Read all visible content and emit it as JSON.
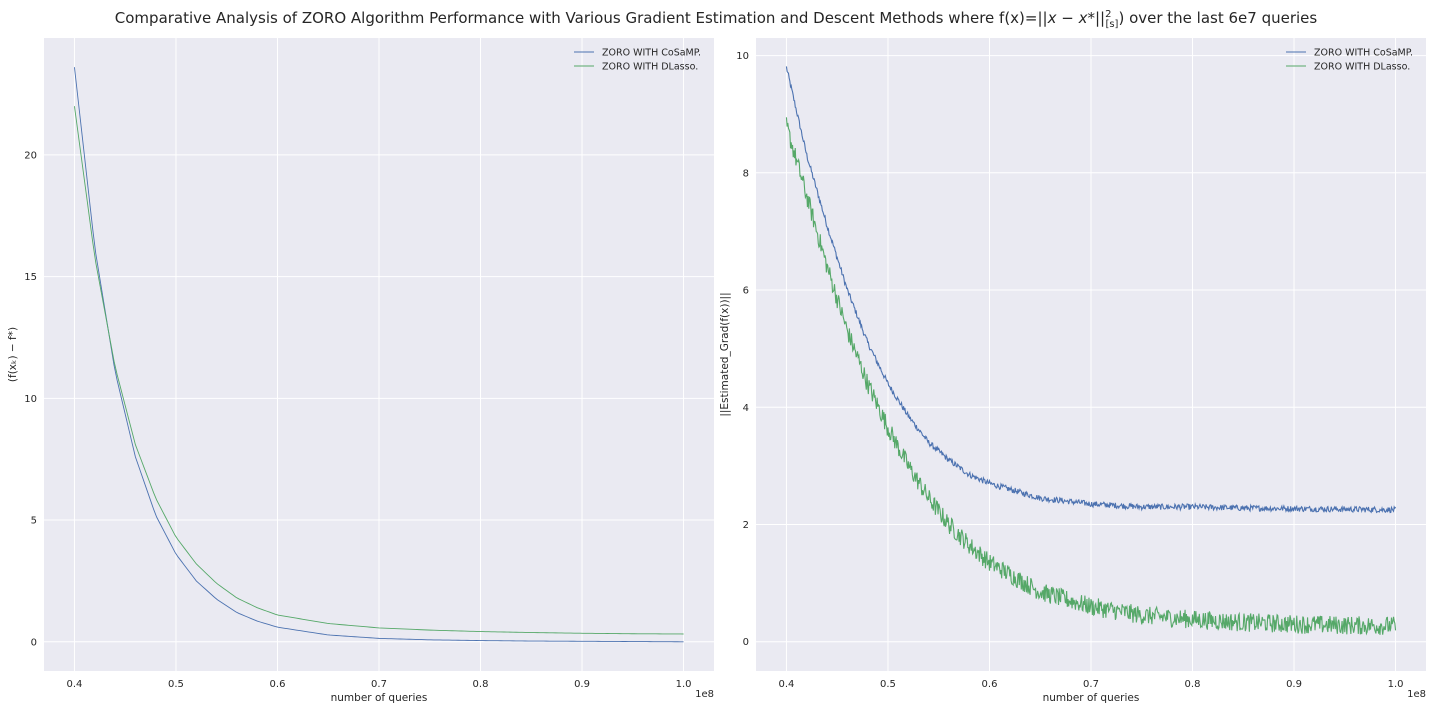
{
  "figure": {
    "title": "Comparative Analysis of ZORO Algorithm Performance with Various Gradient Estimation and Descent Methods where f(x)=||x − x*||²[s]) over the last 6e7 queries",
    "title_parts": {
      "prefix": "Comparative Analysis of ZORO Algorithm Performance with Various Gradient Estimation and Descent Methods where f(x)=",
      "math_body": "||x − x*||",
      "sup": "2",
      "sub": "[s]",
      "suffix": ") over the last 6e7 queries"
    },
    "style": {
      "background": "#eaeaf2",
      "grid": "#ffffff",
      "series_colors": [
        "#4c72b0",
        "#55a868"
      ]
    }
  },
  "chart_data": [
    {
      "type": "line",
      "ylabel": "(f(xₖ) − f*)",
      "xlabel": "number of queries",
      "x_offset_text": "1e8",
      "xlim": [
        0.37,
        1.03
      ],
      "ylim": [
        -1.2,
        24.8
      ],
      "xticks": [
        0.4,
        0.5,
        0.6,
        0.7,
        0.8,
        0.9,
        1.0
      ],
      "xtick_labels": [
        "0.4",
        "0.5",
        "0.6",
        "0.7",
        "0.8",
        "0.9",
        "1.0"
      ],
      "yticks": [
        0,
        5,
        10,
        15,
        20
      ],
      "ytick_labels": [
        "0",
        "5",
        "10",
        "15",
        "20"
      ],
      "grid": true,
      "legend_position": "top-right",
      "x": [
        0.4,
        0.42,
        0.44,
        0.46,
        0.48,
        0.5,
        0.52,
        0.54,
        0.56,
        0.58,
        0.6,
        0.65,
        0.7,
        0.75,
        0.8,
        0.85,
        0.9,
        0.95,
        1.0
      ],
      "series": [
        {
          "name": "ZORO WITH CoSaMP.",
          "color": "#4c72b0",
          "values": [
            23.6,
            16.2,
            11.1,
            7.6,
            5.2,
            3.6,
            2.5,
            1.75,
            1.2,
            0.85,
            0.6,
            0.28,
            0.14,
            0.08,
            0.05,
            0.03,
            0.02,
            0.01,
            0.0
          ]
        },
        {
          "name": "ZORO WITH DLasso.",
          "color": "#55a868",
          "values": [
            22.0,
            15.8,
            11.3,
            8.1,
            5.9,
            4.3,
            3.2,
            2.4,
            1.8,
            1.4,
            1.1,
            0.75,
            0.57,
            0.48,
            0.42,
            0.38,
            0.35,
            0.33,
            0.32
          ]
        }
      ]
    },
    {
      "type": "line",
      "ylabel": "||Estimated_Grad(f(x))||",
      "xlabel": "number of queries",
      "x_offset_text": "1e8",
      "xlim": [
        0.37,
        1.03
      ],
      "ylim": [
        -0.5,
        10.3
      ],
      "xticks": [
        0.4,
        0.5,
        0.6,
        0.7,
        0.8,
        0.9,
        1.0
      ],
      "xtick_labels": [
        "0.4",
        "0.5",
        "0.6",
        "0.7",
        "0.8",
        "0.9",
        "1.0"
      ],
      "yticks": [
        0,
        2,
        4,
        6,
        8,
        10
      ],
      "ytick_labels": [
        "0",
        "2",
        "4",
        "6",
        "8",
        "10"
      ],
      "grid": true,
      "legend_position": "top-right",
      "x": [
        0.4,
        0.42,
        0.44,
        0.46,
        0.48,
        0.5,
        0.52,
        0.54,
        0.56,
        0.58,
        0.6,
        0.65,
        0.7,
        0.75,
        0.8,
        0.85,
        0.9,
        0.95,
        1.0
      ],
      "series": [
        {
          "name": "ZORO WITH CoSaMP.",
          "color": "#4c72b0",
          "noise_amplitude": 0.05,
          "values": [
            9.8,
            8.3,
            7.1,
            6.0,
            5.1,
            4.4,
            3.85,
            3.4,
            3.1,
            2.85,
            2.7,
            2.45,
            2.35,
            2.3,
            2.3,
            2.28,
            2.27,
            2.26,
            2.25
          ]
        },
        {
          "name": "ZORO WITH DLasso.",
          "color": "#55a868",
          "noise_amplitude": 0.16,
          "values": [
            8.8,
            7.6,
            6.4,
            5.3,
            4.4,
            3.65,
            3.0,
            2.45,
            2.0,
            1.65,
            1.35,
            0.85,
            0.6,
            0.45,
            0.38,
            0.33,
            0.3,
            0.28,
            0.27
          ]
        }
      ]
    }
  ]
}
